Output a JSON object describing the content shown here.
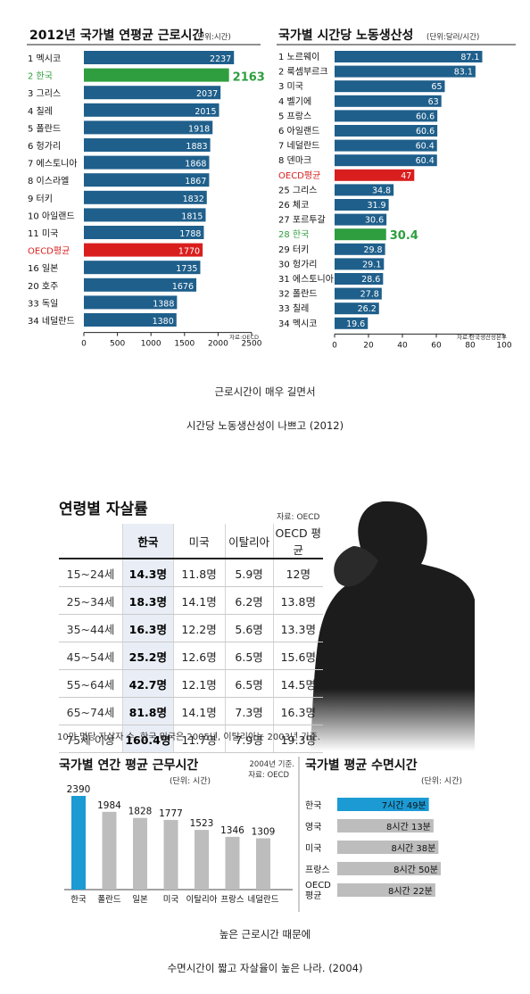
{
  "chart_data": [
    {
      "type": "bar",
      "title": "2012년 국가별 연평균 근로시간",
      "unit_label": "(단위:시간)",
      "categories": [
        "1 멕시코",
        "2 한국",
        "3 그리스",
        "4 칠레",
        "5 폴란드",
        "6 헝가리",
        "7 에스토니아",
        "8 이스라엘",
        "9 터키",
        "10 아일랜드",
        "11 미국",
        "OECD평균",
        "16 일본",
        "20 호주",
        "33 독일",
        "34 네덜란드"
      ],
      "values": [
        2237,
        2163,
        2037,
        2015,
        1918,
        1883,
        1868,
        1867,
        1832,
        1815,
        1788,
        1770,
        1735,
        1676,
        1388,
        1380
      ],
      "value_labels": [
        "2237",
        "2163",
        "2037",
        "2015",
        "1918",
        "1883",
        "1868",
        "1867",
        "1832",
        "1815",
        "1788",
        "1770",
        "1735",
        "1676",
        "1388",
        "1380"
      ],
      "highlight": {
        "2 한국": "#2e9e3e",
        "OECD평균": "#d91e1e"
      },
      "xlim": [
        0,
        2500
      ],
      "xticks": [
        "0",
        "500",
        "1000",
        "1500",
        "2000",
        "2500"
      ],
      "source": "자료:OECD"
    },
    {
      "type": "bar",
      "title": "국가별 시간당 노동생산성",
      "unit_label": "(단위:달러/시간)",
      "categories": [
        "1 노르웨이",
        "2 룩셈부르크",
        "3 미국",
        "4 벨기에",
        "5 프랑스",
        "6 아일랜드",
        "7 네덜란드",
        "8 덴마크",
        "OECD평균",
        "25 그리스",
        "26 체코",
        "27 포르투갈",
        "28 한국",
        "29 터키",
        "30 헝가리",
        "31 에스토니아",
        "32 폴란드",
        "33 칠레",
        "34 멕시코"
      ],
      "values": [
        87.1,
        83.1,
        65,
        63,
        60.6,
        60.6,
        60.4,
        60.4,
        47,
        34.8,
        31.9,
        30.6,
        30.4,
        29.8,
        29.1,
        28.6,
        27.8,
        26.2,
        19.6
      ],
      "value_labels": [
        "87.1",
        "83.1",
        "65",
        "63",
        "60.6",
        "60.6",
        "60.4",
        "60.4",
        "47",
        "34.8",
        "31.9",
        "30.6",
        "30.4",
        "29.8",
        "29.1",
        "28.6",
        "27.8",
        "26.2",
        "19.6"
      ],
      "highlight": {
        "28 한국": "#2e9e3e",
        "OECD평균": "#d91e1e"
      },
      "xlim": [
        0,
        100
      ],
      "xticks": [
        "0",
        "20",
        "40",
        "60",
        "80",
        "100"
      ],
      "source": "자료:한국생산성본부"
    },
    {
      "type": "table",
      "title": "연령별 자살률",
      "source": "자료: OECD",
      "columns": [
        "",
        "한국",
        "미국",
        "이탈리아",
        "OECD 평균"
      ],
      "rows": [
        [
          "15~24세",
          "14.3명",
          "11.8명",
          "5.9명",
          "12명"
        ],
        [
          "25~34세",
          "18.3명",
          "14.1명",
          "6.2명",
          "13.8명"
        ],
        [
          "35~44세",
          "16.3명",
          "12.2명",
          "5.6명",
          "13.3명"
        ],
        [
          "45~54세",
          "25.2명",
          "12.6명",
          "6.5명",
          "15.6명"
        ],
        [
          "55~64세",
          "42.7명",
          "12.1명",
          "6.5명",
          "14.5명"
        ],
        [
          "65~74세",
          "81.8명",
          "14.1명",
          "7.3명",
          "16.3명"
        ],
        [
          "75세 이상",
          "160.4명",
          "11.7명",
          "7.9명",
          "19.3명"
        ]
      ],
      "note": "10만 명당 자살자 수. 한국 미국은 2005년, 이탈리아는 2003년 기준."
    },
    {
      "type": "bar",
      "title": "국가별 연간 평균 근무시간",
      "unit_label": "(단위: 시간)",
      "year_note": "2004년 기준.",
      "source": "자료: OECD",
      "categories": [
        "한국",
        "폴란드",
        "일본",
        "미국",
        "이탈리아",
        "프랑스",
        "네덜란드"
      ],
      "values": [
        2390,
        1984,
        1828,
        1777,
        1523,
        1346,
        1309
      ],
      "value_labels": [
        "2390",
        "1984",
        "1828",
        "1777",
        "1523",
        "1346",
        "1309"
      ],
      "colors": {
        "highlight": "#1b9ad4",
        "others": "#bdbdbd"
      }
    },
    {
      "type": "bar",
      "title": "국가별 평균 수면시간",
      "unit_label": "(단위: 시간)",
      "categories": [
        "한국",
        "영국",
        "미국",
        "프랑스",
        "OECD 평균"
      ],
      "values": [
        469,
        493,
        518,
        530,
        502
      ],
      "value_labels": [
        "7시간 49분",
        "8시간 13분",
        "8시간 38분",
        "8시간 50분",
        "8시간 22분"
      ],
      "value_unit": "minutes",
      "colors": {
        "highlight": "#1b9ad4",
        "others": "#bdbdbd"
      }
    }
  ],
  "captions": {
    "first_line1": "근로시간이 매우 길면서",
    "first_line2": "시간당 노동생산성이 나쁘고 (2012)",
    "second_line1": "높은 근로시간 때문에",
    "second_line2": "수면시간이 짧고 자살율이 높은 나라. (2004)"
  },
  "colors": {
    "bar_default": "#1f5f8b",
    "korea_green": "#2e9e3e",
    "oecd_red": "#d91e1e",
    "highlight_blue": "#1b9ad4",
    "gray_bar": "#bdbdbd",
    "table_korea_bg": "#e9eef6"
  }
}
